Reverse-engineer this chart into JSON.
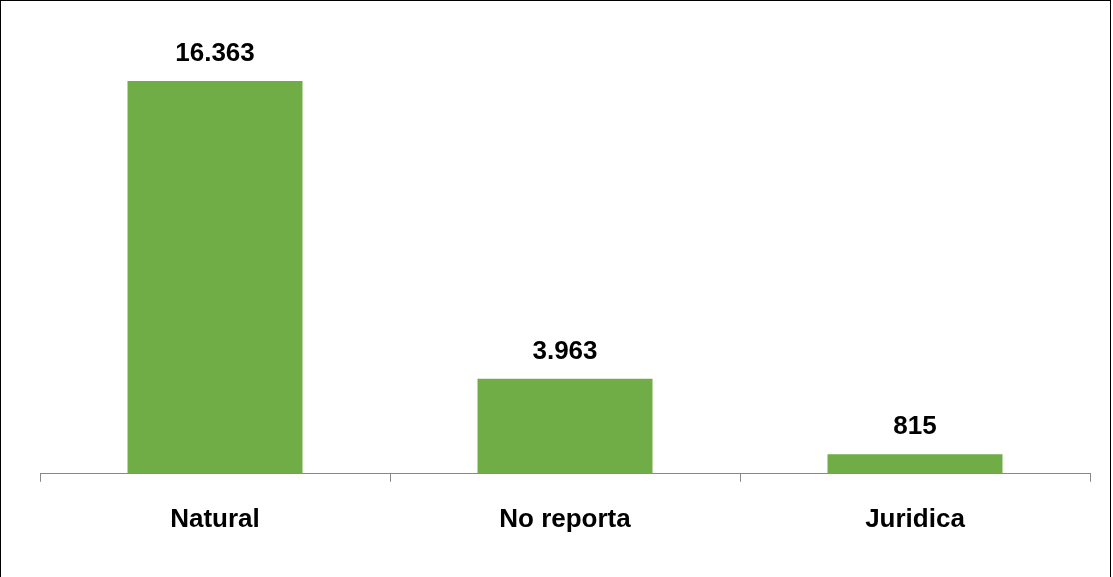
{
  "chart_data": {
    "type": "bar",
    "categories": [
      "Natural",
      "No reporta",
      "Juridica"
    ],
    "values": [
      16363,
      3963,
      815
    ],
    "value_labels": [
      "16.363",
      "3.963",
      "815"
    ],
    "color": "#70ad47",
    "legend": false,
    "grid": false
  }
}
